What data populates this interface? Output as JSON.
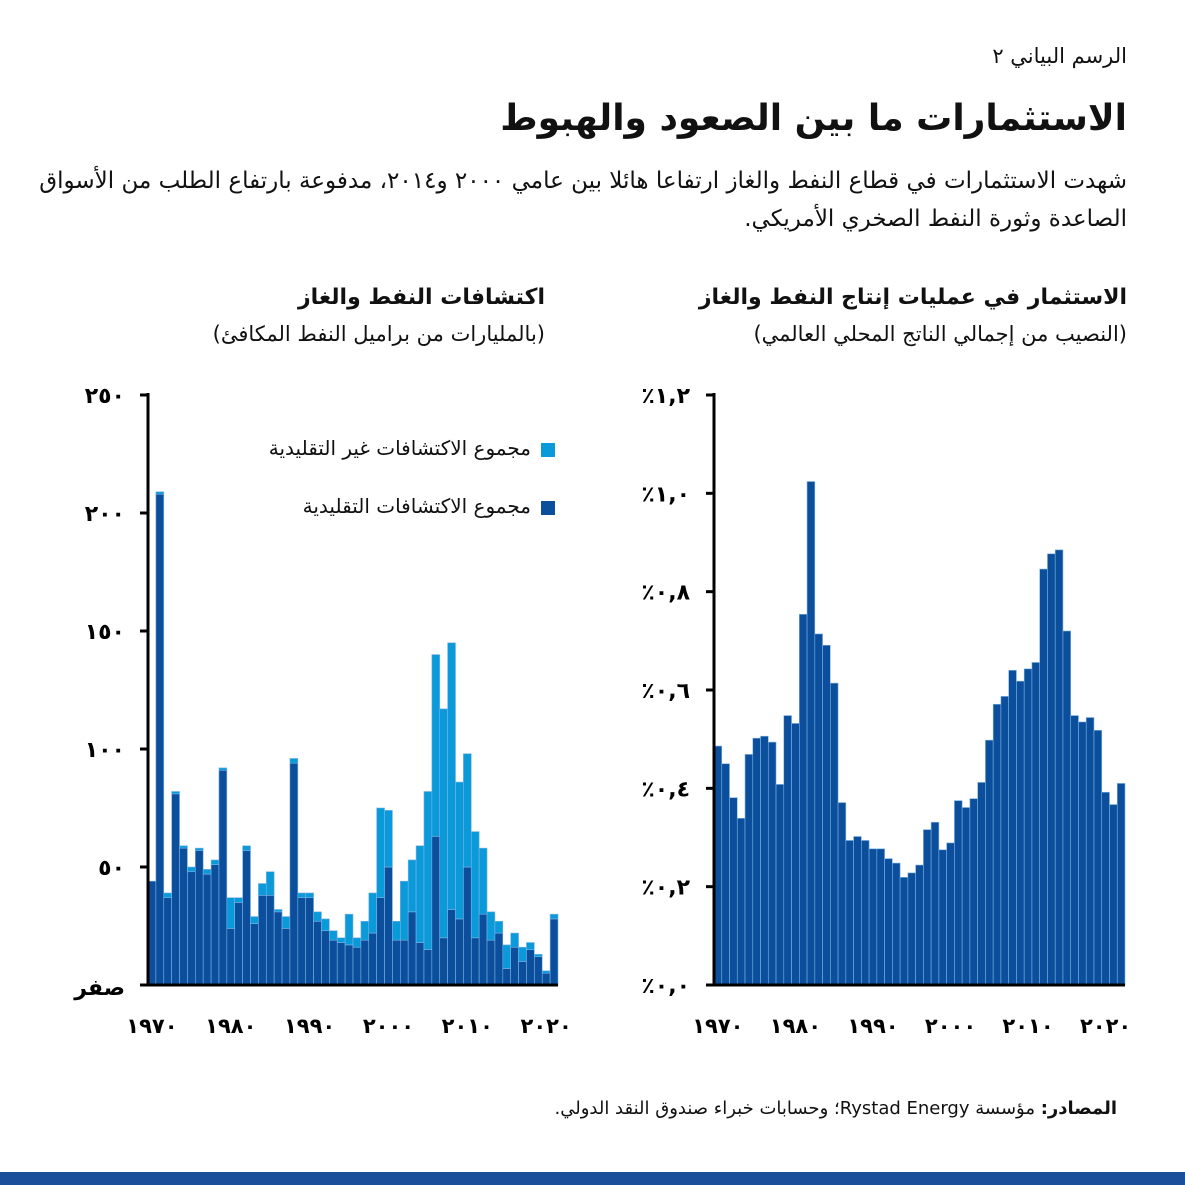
{
  "header": {
    "label": "الرسم البياني ٢",
    "title": "الاستثمارات ما بين الصعود والهبوط",
    "subtitle": "شهدت الاستثمارات في قطاع النفط والغاز ارتفاعا هائلا بين عامي ٢٠٠٠ و٢٠١٤، مدفوعة بارتفاع الطلب من الأسواق الصاعدة وثورة النفط الصخري الأمريكي."
  },
  "source": {
    "label": "المصادر:",
    "text": " مؤسسة Rystad Energy؛ وحسابات خبراء صندوق النقد الدولي."
  },
  "colors": {
    "conventional": "#0b4f9c",
    "unconventional": "#0a9ad9",
    "band": "#1a4f9c"
  },
  "chart_data": [
    {
      "type": "bar",
      "stacked": true,
      "title": "اكتشافات النفط والغاز",
      "subtitle": "(بالمليارات من براميل النفط المكافئ)",
      "ylim": [
        0,
        250
      ],
      "yticks": [
        {
          "v": 0,
          "label": "صفر"
        },
        {
          "v": 50,
          "label": "٥٠"
        },
        {
          "v": 100,
          "label": "١٠٠"
        },
        {
          "v": 150,
          "label": "١٥٠"
        },
        {
          "v": 200,
          "label": "٢٠٠"
        },
        {
          "v": 250,
          "label": "٢٥٠"
        }
      ],
      "xticks": [
        {
          "v": 1970,
          "label": "١٩٧٠"
        },
        {
          "v": 1980,
          "label": "١٩٨٠"
        },
        {
          "v": 1990,
          "label": "١٩٩٠"
        },
        {
          "v": 2000,
          "label": "٢٠٠٠"
        },
        {
          "v": 2010,
          "label": "٢٠١٠"
        },
        {
          "v": 2020,
          "label": "٢٠٢٠"
        }
      ],
      "x_start": 1970,
      "legend_position": "top-right",
      "series": [
        {
          "name": "مجموع الاكتشافات التقليدية",
          "color": "#0b4f9c",
          "values": [
            44,
            208,
            37,
            81,
            58,
            48,
            57,
            47,
            51,
            91,
            24,
            35,
            57,
            26,
            38,
            38,
            31,
            24,
            94,
            37,
            37,
            27,
            23,
            19,
            18,
            17,
            16,
            19,
            22,
            37,
            50,
            19,
            19,
            31,
            18,
            15,
            63,
            20,
            32,
            28,
            50,
            20,
            30,
            19,
            22,
            7,
            16,
            10,
            15,
            12,
            5,
            28
          ]
        },
        {
          "name": "مجموع الاكتشافات غير التقليدية",
          "color": "#0a9ad9",
          "values": [
            0,
            1,
            2,
            1,
            1,
            2,
            1,
            2,
            2,
            1,
            13,
            2,
            2,
            3,
            5,
            10,
            1,
            5,
            2,
            2,
            2,
            4,
            5,
            4,
            2,
            13,
            4,
            8,
            17,
            38,
            24,
            8,
            25,
            22,
            41,
            67,
            77,
            97,
            113,
            58,
            48,
            45,
            28,
            12,
            5,
            10,
            6,
            6,
            3,
            1,
            1,
            2
          ]
        }
      ]
    },
    {
      "type": "bar",
      "title": "الاستثمار في عمليات إنتاج النفط والغاز",
      "subtitle": "(النصيب من إجمالي الناتج المحلي العالمي)",
      "ylim": [
        0,
        1.2
      ],
      "yticks": [
        {
          "v": 0,
          "label": "٪٠,٠"
        },
        {
          "v": 0.2,
          "label": "٪٠,٢"
        },
        {
          "v": 0.4,
          "label": "٪٠,٤"
        },
        {
          "v": 0.6,
          "label": "٪٠,٦"
        },
        {
          "v": 0.8,
          "label": "٪٠,٨"
        },
        {
          "v": 1.0,
          "label": "٪١,٠"
        },
        {
          "v": 1.2,
          "label": "٪١,٢"
        }
      ],
      "xticks": [
        {
          "v": 1970,
          "label": "١٩٧٠"
        },
        {
          "v": 1980,
          "label": "١٩٨٠"
        },
        {
          "v": 1990,
          "label": "١٩٩٠"
        },
        {
          "v": 2000,
          "label": "٢٠٠٠"
        },
        {
          "v": 2010,
          "label": "٢٠١٠"
        },
        {
          "v": 2020,
          "label": "٢٠٢٠"
        }
      ],
      "x_start": 1970,
      "series": [
        {
          "color": "#0b4f9c",
          "values": [
            0.486,
            0.45,
            0.381,
            0.339,
            0.469,
            0.502,
            0.506,
            0.494,
            0.408,
            0.548,
            0.532,
            0.754,
            1.024,
            0.714,
            0.691,
            0.614,
            0.371,
            0.294,
            0.302,
            0.294,
            0.277,
            0.277,
            0.257,
            0.248,
            0.219,
            0.228,
            0.244,
            0.316,
            0.331,
            0.275,
            0.289,
            0.375,
            0.361,
            0.379,
            0.412,
            0.498,
            0.571,
            0.587,
            0.64,
            0.618,
            0.643,
            0.656,
            0.846,
            0.877,
            0.885,
            0.72,
            0.548,
            0.535,
            0.544,
            0.518,
            0.392,
            0.367,
            0.41
          ]
        }
      ]
    }
  ]
}
